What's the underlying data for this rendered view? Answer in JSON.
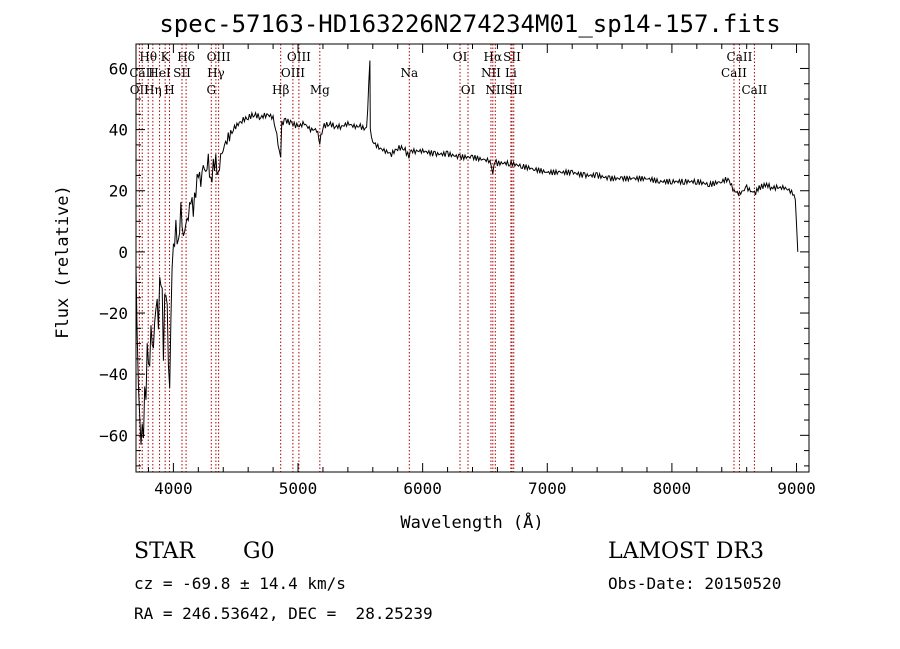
{
  "chart_data": {
    "type": "line",
    "title": "spec-57163-HD163226N274234M01_sp14-157.fits",
    "xlabel": "Wavelength (Å)",
    "ylabel": "Flux (relative)",
    "xlim": [
      3700,
      9100
    ],
    "ylim": [
      -72,
      68
    ],
    "xticks": [
      4000,
      5000,
      6000,
      7000,
      8000,
      9000
    ],
    "yticks": [
      -60,
      -40,
      -20,
      0,
      20,
      40,
      60
    ],
    "grid": false,
    "series": [
      {
        "x": [
          3700,
          3710,
          3730,
          3750,
          3770,
          3790,
          3800,
          3820,
          3840,
          3860,
          3880,
          3900,
          3920,
          3940,
          3960,
          3970,
          3980,
          3990,
          4000,
          4020,
          4040,
          4060,
          4080,
          4100,
          4120,
          4140,
          4160,
          4180,
          4200,
          4220,
          4240,
          4260,
          4280,
          4300,
          4320,
          4340,
          4360,
          4380,
          4400,
          4450,
          4500,
          4550,
          4600,
          4650,
          4700,
          4750,
          4800,
          4830,
          4861,
          4870,
          4900,
          4950,
          5000,
          5050,
          5100,
          5150,
          5175,
          5200,
          5250,
          5300,
          5350,
          5400,
          5450,
          5500,
          5550,
          5577,
          5580,
          5600,
          5650,
          5700,
          5750,
          5800,
          5850,
          5890,
          5900,
          5950,
          6000,
          6100,
          6200,
          6300,
          6400,
          6500,
          6540,
          6563,
          6580,
          6600,
          6700,
          6800,
          6900,
          7000,
          7100,
          7200,
          7300,
          7400,
          7500,
          7600,
          7700,
          7800,
          7900,
          8000,
          8100,
          8200,
          8300,
          8400,
          8450,
          8498,
          8542,
          8600,
          8662,
          8700,
          8760,
          8800,
          8850,
          8900,
          8950,
          8990,
          9000,
          9010
        ],
        "y": [
          -5,
          -30,
          -58,
          -62,
          -50,
          -35,
          -40,
          -25,
          -30,
          -15,
          -20,
          -5,
          -30,
          -10,
          -35,
          -45,
          -25,
          -10,
          0,
          8,
          2,
          15,
          5,
          10,
          12,
          18,
          14,
          20,
          26,
          22,
          28,
          25,
          30,
          22,
          28,
          30,
          25,
          32,
          34,
          38,
          41,
          43,
          44,
          45,
          44,
          45,
          44,
          38,
          30,
          42,
          43,
          42,
          41,
          42,
          40,
          40,
          36,
          41,
          42,
          41,
          41,
          42,
          41,
          41,
          40,
          62,
          40,
          36,
          34,
          33,
          32,
          34,
          34,
          31,
          33,
          33,
          33,
          32,
          32,
          31,
          31,
          30,
          30,
          26,
          30,
          29,
          29,
          28,
          27,
          26,
          26,
          26,
          25,
          25,
          24,
          24,
          24,
          24,
          23,
          23,
          23,
          23,
          22,
          23,
          24,
          20,
          19,
          21,
          19,
          21,
          22,
          21,
          21,
          21,
          20,
          18,
          10,
          0
        ]
      }
    ],
    "lines": [
      {
        "label": "OII",
        "wl": 3727,
        "row": 3
      },
      {
        "label": "Hθ",
        "wl": 3798,
        "row": 1
      },
      {
        "label": "CaII",
        "wl": 3750,
        "row": 2
      },
      {
        "label": "Hη",
        "wl": 3835,
        "row": 3
      },
      {
        "label": "K",
        "wl": 3934,
        "row": 1
      },
      {
        "label": "HeI",
        "wl": 3889,
        "row": 2
      },
      {
        "label": "H",
        "wl": 3969,
        "row": 3
      },
      {
        "label": "Hδ",
        "wl": 4102,
        "row": 1
      },
      {
        "label": "SII",
        "wl": 4069,
        "row": 2
      },
      {
        "label": "OIII",
        "wl": 4363,
        "row": 1
      },
      {
        "label": "Hγ",
        "wl": 4341,
        "row": 2
      },
      {
        "label": "G",
        "wl": 4304,
        "row": 3
      },
      {
        "label": "Hβ",
        "wl": 4861,
        "row": 3
      },
      {
        "label": "OIII",
        "wl": 5007,
        "row": 1
      },
      {
        "label": "OIII",
        "wl": 4959,
        "row": 2
      },
      {
        "label": "Mg",
        "wl": 5175,
        "row": 3
      },
      {
        "label": "Na",
        "wl": 5893,
        "row": 2
      },
      {
        "label": "OI",
        "wl": 6300,
        "row": 1
      },
      {
        "label": "OI",
        "wl": 6364,
        "row": 3
      },
      {
        "label": "Hα",
        "wl": 6563,
        "row": 1
      },
      {
        "label": "SII",
        "wl": 6717,
        "row": 1
      },
      {
        "label": "NII",
        "wl": 6548,
        "row": 2
      },
      {
        "label": "Li",
        "wl": 6708,
        "row": 2
      },
      {
        "label": "NII",
        "wl": 6583,
        "row": 3
      },
      {
        "label": "SII",
        "wl": 6731,
        "row": 3
      },
      {
        "label": "CaII",
        "wl": 8542,
        "row": 1
      },
      {
        "label": "CaII",
        "wl": 8498,
        "row": 2
      },
      {
        "label": "CaII",
        "wl": 8662,
        "row": 3
      }
    ]
  },
  "info": {
    "object_class": "STAR",
    "subclass": "G0",
    "survey": "LAMOST DR3",
    "redshift": "cz = -69.8 ± 14.4 km/s",
    "obs_date": "Obs-Date: 20150520",
    "coords": "RA = 246.53642, DEC =  28.25239"
  },
  "colors": {
    "spectrum": "#000000",
    "line_markers": "#b00000",
    "axes": "#000000",
    "background": "#ffffff"
  }
}
